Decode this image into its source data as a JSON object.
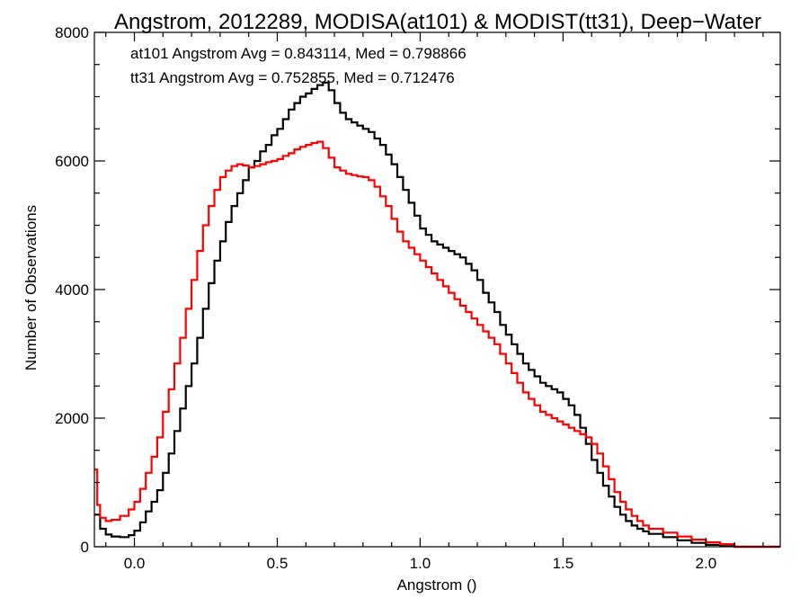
{
  "colors": {
    "series_at101": "#000000",
    "series_tt31": "#ff0000",
    "axes": "#000000",
    "background": "#ffffff"
  },
  "chart_data": {
    "type": "line",
    "step": true,
    "title": "Angstrom, 2012289, MODISA(at101) & MODIST(tt31), Deep−Water",
    "xlabel": "Angstrom ()",
    "ylabel": "Number of Observations",
    "xlim": [
      -0.14,
      2.26
    ],
    "ylim": [
      0,
      8000
    ],
    "xticks": [
      0.0,
      0.5,
      1.0,
      1.5,
      2.0
    ],
    "xticklabels": [
      "0.0",
      "0.5",
      "1.0",
      "1.5",
      "2.0"
    ],
    "yticks": [
      0,
      2000,
      4000,
      6000,
      8000
    ],
    "yticklabels": [
      "0",
      "2000",
      "4000",
      "6000",
      "8000"
    ],
    "grid": false,
    "annotations": [
      {
        "text": "at101 Angstrom Avg = 0.843114, Med = 0.798866",
        "color": "#000000"
      },
      {
        "text": "tt31 Angstrom Avg = 0.752855, Med = 0.712476",
        "color": "#ff0000"
      }
    ],
    "series": [
      {
        "id": "at101",
        "color": "#000000",
        "x": [
          -0.14,
          -0.12,
          -0.1,
          -0.08,
          -0.05,
          -0.02,
          0.0,
          0.02,
          0.04,
          0.06,
          0.08,
          0.1,
          0.12,
          0.14,
          0.16,
          0.18,
          0.2,
          0.22,
          0.24,
          0.26,
          0.28,
          0.3,
          0.32,
          0.34,
          0.36,
          0.38,
          0.4,
          0.42,
          0.44,
          0.46,
          0.48,
          0.5,
          0.52,
          0.54,
          0.56,
          0.58,
          0.6,
          0.62,
          0.64,
          0.66,
          0.68,
          0.7,
          0.72,
          0.74,
          0.76,
          0.78,
          0.8,
          0.82,
          0.84,
          0.86,
          0.88,
          0.9,
          0.92,
          0.94,
          0.96,
          0.98,
          1.0,
          1.02,
          1.04,
          1.06,
          1.08,
          1.1,
          1.12,
          1.14,
          1.16,
          1.18,
          1.2,
          1.22,
          1.24,
          1.26,
          1.28,
          1.3,
          1.32,
          1.34,
          1.36,
          1.38,
          1.4,
          1.42,
          1.44,
          1.46,
          1.48,
          1.5,
          1.52,
          1.54,
          1.56,
          1.58,
          1.6,
          1.62,
          1.64,
          1.66,
          1.68,
          1.7,
          1.72,
          1.74,
          1.76,
          1.78,
          1.8,
          1.85,
          1.9,
          1.95,
          2.0,
          2.05,
          2.1,
          2.14,
          2.16,
          2.26
        ],
        "y": [
          500,
          280,
          190,
          160,
          150,
          180,
          250,
          380,
          550,
          700,
          880,
          1150,
          1450,
          1800,
          2150,
          2500,
          2850,
          3250,
          3700,
          4100,
          4450,
          4750,
          5050,
          5300,
          5500,
          5700,
          5900,
          6000,
          6150,
          6250,
          6400,
          6500,
          6650,
          6800,
          6900,
          7000,
          7050,
          7120,
          7180,
          7220,
          7100,
          6900,
          6750,
          6650,
          6600,
          6550,
          6500,
          6450,
          6350,
          6250,
          6100,
          5950,
          5750,
          5550,
          5350,
          5150,
          4950,
          4850,
          4750,
          4700,
          4650,
          4600,
          4550,
          4500,
          4400,
          4300,
          4150,
          3950,
          3800,
          3650,
          3450,
          3300,
          3150,
          3000,
          2850,
          2750,
          2650,
          2550,
          2500,
          2450,
          2400,
          2300,
          2200,
          2050,
          1850,
          1600,
          1350,
          1150,
          950,
          780,
          620,
          500,
          400,
          330,
          280,
          240,
          200,
          150,
          100,
          60,
          30,
          10,
          0,
          0,
          0,
          0
        ]
      },
      {
        "id": "tt31",
        "color": "#ff0000",
        "x": [
          -0.14,
          -0.13,
          -0.12,
          -0.1,
          -0.08,
          -0.05,
          -0.02,
          0.0,
          0.02,
          0.04,
          0.06,
          0.08,
          0.1,
          0.12,
          0.14,
          0.16,
          0.18,
          0.2,
          0.22,
          0.24,
          0.26,
          0.28,
          0.3,
          0.32,
          0.34,
          0.36,
          0.38,
          0.4,
          0.42,
          0.44,
          0.46,
          0.48,
          0.5,
          0.52,
          0.54,
          0.56,
          0.58,
          0.6,
          0.62,
          0.64,
          0.66,
          0.68,
          0.7,
          0.72,
          0.74,
          0.76,
          0.78,
          0.8,
          0.82,
          0.84,
          0.86,
          0.88,
          0.9,
          0.92,
          0.94,
          0.96,
          0.98,
          1.0,
          1.02,
          1.04,
          1.06,
          1.08,
          1.1,
          1.12,
          1.14,
          1.16,
          1.18,
          1.2,
          1.22,
          1.24,
          1.26,
          1.28,
          1.3,
          1.32,
          1.34,
          1.36,
          1.38,
          1.4,
          1.42,
          1.44,
          1.46,
          1.48,
          1.5,
          1.52,
          1.54,
          1.56,
          1.58,
          1.6,
          1.62,
          1.64,
          1.66,
          1.68,
          1.7,
          1.72,
          1.74,
          1.76,
          1.78,
          1.8,
          1.85,
          1.9,
          1.95,
          2.0,
          2.05,
          2.1,
          2.14,
          2.16,
          2.26
        ],
        "y": [
          1200,
          650,
          450,
          400,
          420,
          480,
          580,
          700,
          900,
          1150,
          1400,
          1700,
          2100,
          2450,
          2850,
          3250,
          3700,
          4150,
          4600,
          5000,
          5300,
          5550,
          5750,
          5850,
          5920,
          5950,
          5930,
          5900,
          5920,
          5950,
          5980,
          6000,
          6030,
          6080,
          6120,
          6180,
          6220,
          6250,
          6280,
          6300,
          6200,
          6050,
          5900,
          5850,
          5800,
          5780,
          5760,
          5750,
          5700,
          5600,
          5450,
          5300,
          5100,
          4900,
          4750,
          4650,
          4550,
          4450,
          4350,
          4250,
          4150,
          4050,
          3950,
          3850,
          3750,
          3650,
          3550,
          3450,
          3350,
          3250,
          3150,
          3000,
          2850,
          2700,
          2550,
          2400,
          2300,
          2200,
          2100,
          2050,
          2000,
          1950,
          1900,
          1850,
          1800,
          1750,
          1700,
          1600,
          1450,
          1250,
          1050,
          850,
          700,
          580,
          480,
          400,
          330,
          280,
          220,
          160,
          110,
          70,
          40,
          0,
          0,
          0,
          0
        ]
      }
    ]
  }
}
